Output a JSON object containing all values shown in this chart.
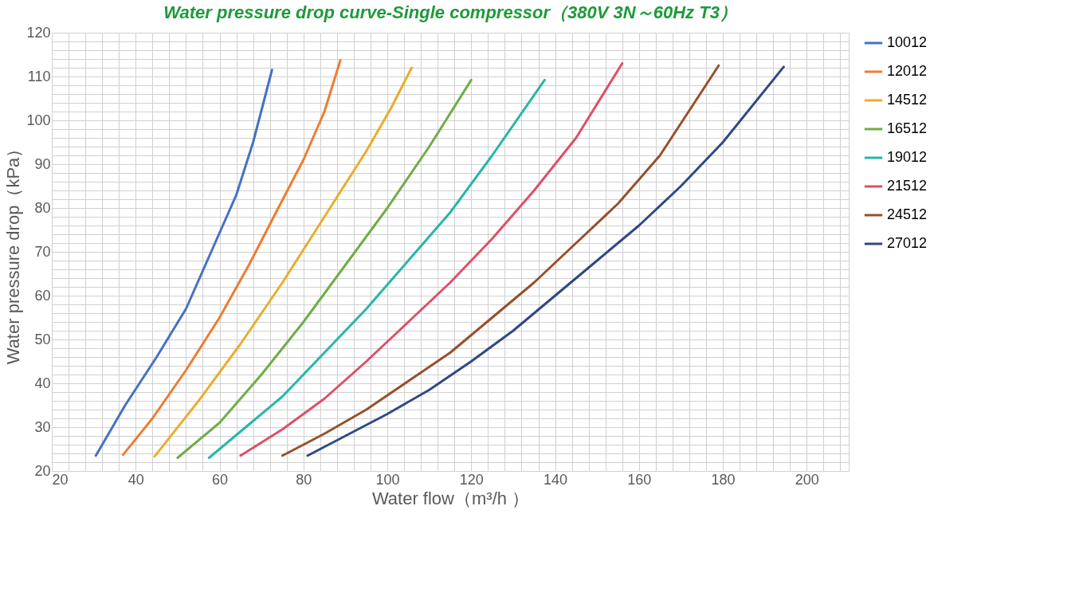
{
  "chart_data": {
    "type": "line",
    "title": "Water pressure drop curve-Single compressor（380V 3N～60Hz T3）",
    "xlabel": "Water flow（m³/h ）",
    "ylabel": "Water pressure drop（kPa）",
    "xlim": [
      20,
      210
    ],
    "ylim": [
      20,
      120
    ],
    "xticks": [
      20,
      {
        "value": 24,
        "label": null
      },
      {
        "value": 28,
        "label": null
      },
      {
        "value": 32,
        "label": null
      },
      {
        "value": 36,
        "label": null
      },
      40,
      {
        "value": 44,
        "label": null
      },
      {
        "value": 48,
        "label": null
      },
      {
        "value": 52,
        "label": null
      },
      {
        "value": 56,
        "label": null
      },
      60,
      {
        "value": 64,
        "label": null
      },
      {
        "value": 68,
        "label": null
      },
      {
        "value": 72,
        "label": null
      },
      {
        "value": 76,
        "label": null
      },
      80,
      {
        "value": 84,
        "label": null
      },
      {
        "value": 88,
        "label": null
      },
      {
        "value": 92,
        "label": null
      },
      {
        "value": 96,
        "label": null
      },
      100,
      {
        "value": 104,
        "label": null
      },
      {
        "value": 108,
        "label": null
      },
      {
        "value": 112,
        "label": null
      },
      {
        "value": 116,
        "label": null
      },
      120,
      {
        "value": 124,
        "label": null
      },
      {
        "value": 128,
        "label": null
      },
      {
        "value": 132,
        "label": null
      },
      {
        "value": 136,
        "label": null
      },
      140,
      {
        "value": 144,
        "label": null
      },
      {
        "value": 148,
        "label": null
      },
      {
        "value": 152,
        "label": null
      },
      {
        "value": 156,
        "label": null
      },
      160,
      {
        "value": 164,
        "label": null
      },
      {
        "value": 168,
        "label": null
      },
      {
        "value": 172,
        "label": null
      },
      {
        "value": 176,
        "label": null
      },
      180,
      {
        "value": 184,
        "label": null
      },
      {
        "value": 188,
        "label": null
      },
      {
        "value": 192,
        "label": null
      },
      {
        "value": 196,
        "label": null
      },
      200,
      {
        "value": 204,
        "label": null
      },
      {
        "value": 208,
        "label": null
      }
    ],
    "yticks": [
      20,
      {
        "value": 22,
        "label": null
      },
      {
        "value": 24,
        "label": null
      },
      {
        "value": 26,
        "label": null
      },
      {
        "value": 28,
        "label": null
      },
      30,
      {
        "value": 32,
        "label": null
      },
      {
        "value": 34,
        "label": null
      },
      {
        "value": 36,
        "label": null
      },
      {
        "value": 38,
        "label": null
      },
      40,
      {
        "value": 42,
        "label": null
      },
      {
        "value": 44,
        "label": null
      },
      {
        "value": 46,
        "label": null
      },
      {
        "value": 48,
        "label": null
      },
      50,
      {
        "value": 52,
        "label": null
      },
      {
        "value": 54,
        "label": null
      },
      {
        "value": 56,
        "label": null
      },
      {
        "value": 58,
        "label": null
      },
      60,
      {
        "value": 62,
        "label": null
      },
      {
        "value": 64,
        "label": null
      },
      {
        "value": 66,
        "label": null
      },
      {
        "value": 68,
        "label": null
      },
      70,
      {
        "value": 72,
        "label": null
      },
      {
        "value": 74,
        "label": null
      },
      {
        "value": 76,
        "label": null
      },
      {
        "value": 78,
        "label": null
      },
      80,
      {
        "value": 82,
        "label": null
      },
      {
        "value": 84,
        "label": null
      },
      {
        "value": 86,
        "label": null
      },
      {
        "value": 88,
        "label": null
      },
      90,
      {
        "value": 92,
        "label": null
      },
      {
        "value": 94,
        "label": null
      },
      {
        "value": 96,
        "label": null
      },
      {
        "value": 98,
        "label": null
      },
      100,
      {
        "value": 102,
        "label": null
      },
      {
        "value": 104,
        "label": null
      },
      {
        "value": 106,
        "label": null
      },
      {
        "value": 108,
        "label": null
      },
      110,
      {
        "value": 112,
        "label": null
      },
      {
        "value": 114,
        "label": null
      },
      {
        "value": 116,
        "label": null
      },
      {
        "value": 118,
        "label": null
      },
      120
    ],
    "grid": true,
    "legend": "right",
    "line_style": "solid",
    "series": [
      {
        "name": "10012",
        "color": "#4472c4",
        "x": [
          30.5,
          37.5,
          45,
          52,
          58,
          64,
          68,
          72.5
        ],
        "values": [
          23.5,
          35,
          46,
          57,
          70,
          83,
          95,
          111.5
        ]
      },
      {
        "name": "12012",
        "color": "#ed7d31",
        "x": [
          37,
          44,
          52,
          60,
          67,
          74,
          80,
          85,
          88.8
        ],
        "values": [
          23.7,
          32,
          43,
          55,
          67,
          80,
          91,
          102,
          113.7
        ]
      },
      {
        "name": "14512",
        "color": "#e9ad2c",
        "x": [
          44.5,
          55,
          65,
          75,
          85,
          95,
          101,
          105.8
        ],
        "values": [
          23.3,
          36,
          49,
          63,
          78,
          93,
          103,
          112
        ]
      },
      {
        "name": "16512",
        "color": "#70ad47",
        "x": [
          50,
          60,
          70,
          80,
          90,
          100,
          110,
          120
        ],
        "values": [
          23,
          31,
          42,
          54,
          67,
          80,
          94,
          109.2
        ]
      },
      {
        "name": "19012",
        "color": "#26b7a8",
        "x": [
          57.5,
          65,
          75,
          85,
          95,
          105,
          115,
          125,
          137.5
        ],
        "values": [
          23,
          29,
          37,
          47,
          57,
          68,
          79,
          92,
          109.2
        ]
      },
      {
        "name": "21512",
        "color": "#dd4f6a",
        "x": [
          65,
          75,
          85,
          95,
          105,
          115,
          125,
          135,
          145,
          156
        ],
        "values": [
          23.5,
          29.5,
          36.5,
          45,
          54,
          63,
          73,
          84,
          96,
          113
        ]
      },
      {
        "name": "24512",
        "color": "#96502a",
        "x": [
          75,
          85,
          95,
          105,
          115,
          125,
          135,
          145,
          155,
          165,
          179
        ],
        "values": [
          23.5,
          28.5,
          34,
          40.5,
          47,
          55,
          63,
          72,
          81,
          92,
          112.5
        ]
      },
      {
        "name": "27012",
        "color": "#2e4a82",
        "x": [
          81,
          90,
          100,
          110,
          120,
          130,
          140,
          150,
          160,
          170,
          180,
          194.5
        ],
        "values": [
          23.5,
          28,
          33,
          38.5,
          45,
          52,
          60,
          68,
          76,
          85,
          95,
          112.2
        ]
      }
    ]
  }
}
